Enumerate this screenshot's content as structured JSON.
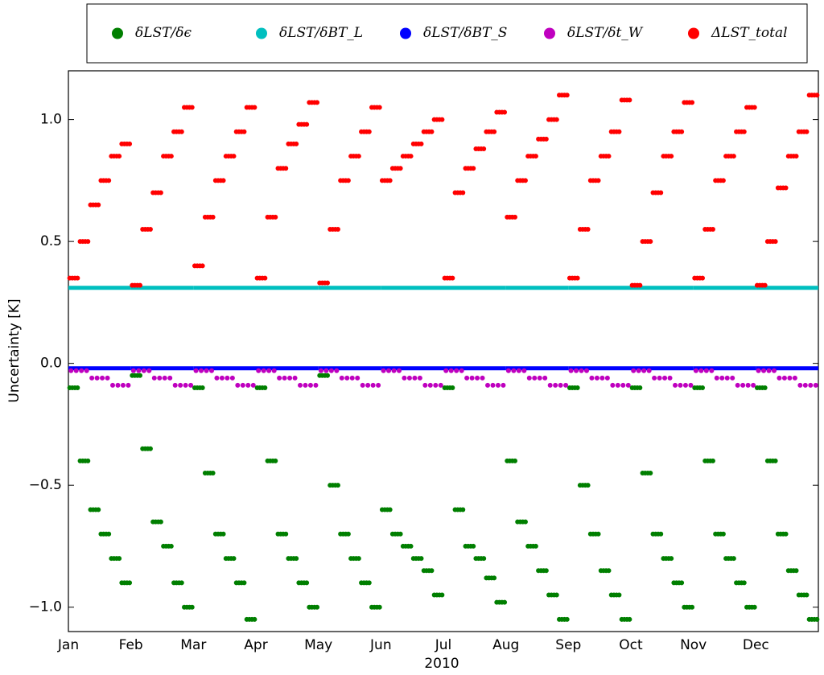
{
  "chart_data": {
    "type": "scatter",
    "x_label": "2010",
    "y_label": "Uncertainty [K]",
    "categories": [
      "Jan",
      "Feb",
      "Mar",
      "Apr",
      "May",
      "Jun",
      "Jul",
      "Aug",
      "Sep",
      "Oct",
      "Nov",
      "Dec"
    ],
    "ylim": [
      -1.1,
      1.2
    ],
    "yticks": [
      {
        "value": -1.0,
        "label": "−1.0"
      },
      {
        "value": -0.5,
        "label": "−0.5"
      },
      {
        "value": 0,
        "label": "0.0"
      },
      {
        "value": 0.5,
        "label": "0.5"
      },
      {
        "value": 1.0,
        "label": "1.0"
      }
    ],
    "legend": "upper center",
    "series": [
      {
        "name": "δLST/δϵ",
        "color": "#007f00",
        "values": [
          [
            -0.1,
            -0.4,
            -0.6,
            -0.7,
            -0.8,
            -0.9
          ],
          [
            -0.05,
            -0.35,
            -0.65,
            -0.75,
            -0.9,
            -1.0
          ],
          [
            -0.1,
            -0.45,
            -0.7,
            -0.8,
            -0.9,
            -1.05
          ],
          [
            -0.1,
            -0.4,
            -0.7,
            -0.8,
            -0.9,
            -1.0
          ],
          [
            -0.05,
            -0.5,
            -0.7,
            -0.8,
            -0.9,
            -1.0
          ],
          [
            -0.6,
            -0.7,
            -0.75,
            -0.8,
            -0.85,
            -0.95
          ],
          [
            -0.1,
            -0.6,
            -0.75,
            -0.8,
            -0.88,
            -0.98
          ],
          [
            -0.4,
            -0.65,
            -0.75,
            -0.85,
            -0.95,
            -1.05
          ],
          [
            -0.1,
            -0.5,
            -0.7,
            -0.85,
            -0.95,
            -1.05
          ],
          [
            -0.1,
            -0.45,
            -0.7,
            -0.8,
            -0.9,
            -1.0
          ],
          [
            -0.1,
            -0.4,
            -0.7,
            -0.8,
            -0.9,
            -1.0
          ],
          [
            -0.1,
            -0.4,
            -0.7,
            -0.85,
            -0.95,
            -1.05
          ]
        ]
      },
      {
        "name": "δLST/δBT_L",
        "color": "#00bfbf",
        "values": [
          [
            0.31
          ],
          [
            0.31
          ],
          [
            0.31
          ],
          [
            0.31
          ],
          [
            0.31
          ],
          [
            0.31
          ],
          [
            0.31
          ],
          [
            0.31
          ],
          [
            0.31
          ],
          [
            0.31
          ],
          [
            0.31
          ],
          [
            0.31
          ]
        ]
      },
      {
        "name": "δLST/δBT_S",
        "color": "#0000ff",
        "values": [
          [
            -0.02
          ],
          [
            -0.02
          ],
          [
            -0.02
          ],
          [
            -0.02
          ],
          [
            -0.02
          ],
          [
            -0.02
          ],
          [
            -0.02
          ],
          [
            -0.02
          ],
          [
            -0.02
          ],
          [
            -0.02
          ],
          [
            -0.02
          ],
          [
            -0.02
          ]
        ]
      },
      {
        "name": "δLST/δt_W",
        "color": "#bf00bf",
        "values": [
          [
            -0.03,
            -0.06,
            -0.09
          ],
          [
            -0.03,
            -0.06,
            -0.09
          ],
          [
            -0.03,
            -0.06,
            -0.09
          ],
          [
            -0.03,
            -0.06,
            -0.09
          ],
          [
            -0.03,
            -0.06,
            -0.09
          ],
          [
            -0.03,
            -0.06,
            -0.09
          ],
          [
            -0.03,
            -0.06,
            -0.09
          ],
          [
            -0.03,
            -0.06,
            -0.09
          ],
          [
            -0.03,
            -0.06,
            -0.09
          ],
          [
            -0.03,
            -0.06,
            -0.09
          ],
          [
            -0.03,
            -0.06,
            -0.09
          ],
          [
            -0.03,
            -0.06,
            -0.09
          ]
        ]
      },
      {
        "name": "ΔLST_total",
        "color": "#ff0000",
        "values": [
          [
            0.35,
            0.5,
            0.65,
            0.75,
            0.85,
            0.9
          ],
          [
            0.32,
            0.55,
            0.7,
            0.85,
            0.95,
            1.05
          ],
          [
            0.4,
            0.6,
            0.75,
            0.85,
            0.95,
            1.05
          ],
          [
            0.35,
            0.6,
            0.8,
            0.9,
            0.98,
            1.07
          ],
          [
            0.33,
            0.55,
            0.75,
            0.85,
            0.95,
            1.05
          ],
          [
            0.75,
            0.8,
            0.85,
            0.9,
            0.95,
            1.0
          ],
          [
            0.35,
            0.7,
            0.8,
            0.88,
            0.95,
            1.03
          ],
          [
            0.6,
            0.75,
            0.85,
            0.92,
            1.0,
            1.1
          ],
          [
            0.35,
            0.55,
            0.75,
            0.85,
            0.95,
            1.08
          ],
          [
            0.32,
            0.5,
            0.7,
            0.85,
            0.95,
            1.07
          ],
          [
            0.35,
            0.55,
            0.75,
            0.85,
            0.95,
            1.05
          ],
          [
            0.32,
            0.5,
            0.72,
            0.85,
            0.95,
            1.1
          ]
        ]
      }
    ]
  }
}
